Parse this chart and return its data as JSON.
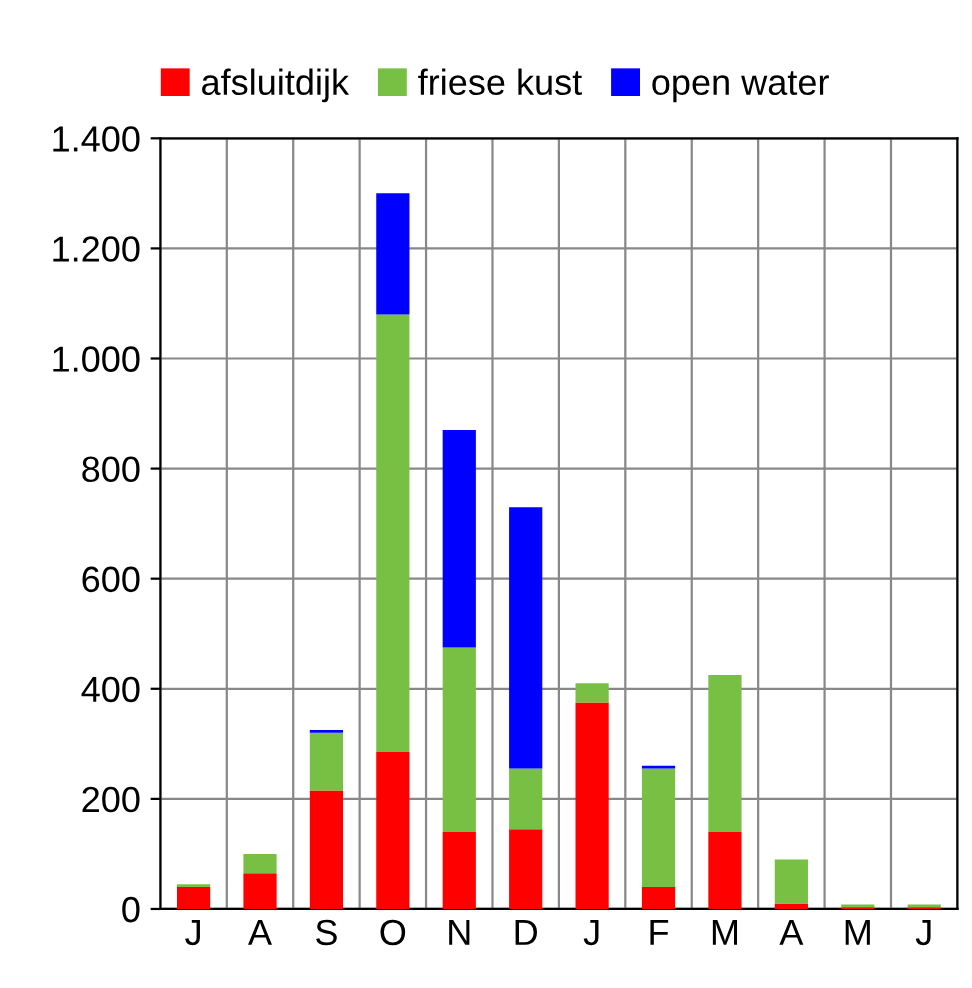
{
  "chart_data": {
    "type": "bar",
    "stacked": true,
    "categories": [
      "J",
      "A",
      "S",
      "O",
      "N",
      "D",
      "J",
      "F",
      "M",
      "A",
      "M",
      "J"
    ],
    "series": [
      {
        "name": "afsluitdijk",
        "color": "#ff0000",
        "values": [
          40,
          65,
          215,
          285,
          140,
          145,
          375,
          40,
          140,
          10,
          3,
          3
        ]
      },
      {
        "name": "friese kust",
        "color": "#77c043",
        "values": [
          5,
          35,
          105,
          795,
          335,
          110,
          35,
          215,
          285,
          80,
          5,
          5
        ]
      },
      {
        "name": "open water",
        "color": "#0000ff",
        "values": [
          0,
          0,
          5,
          220,
          395,
          475,
          0,
          5,
          0,
          0,
          0,
          0
        ]
      }
    ],
    "ylim": [
      0,
      1400
    ],
    "yticks": [
      0,
      200,
      400,
      600,
      800,
      {
        "value": 1000,
        "label": "1.000"
      },
      {
        "value": 1200,
        "label": "1.200"
      },
      {
        "value": 1400,
        "label": "1.400"
      }
    ],
    "grid": true,
    "legend": "top"
  }
}
